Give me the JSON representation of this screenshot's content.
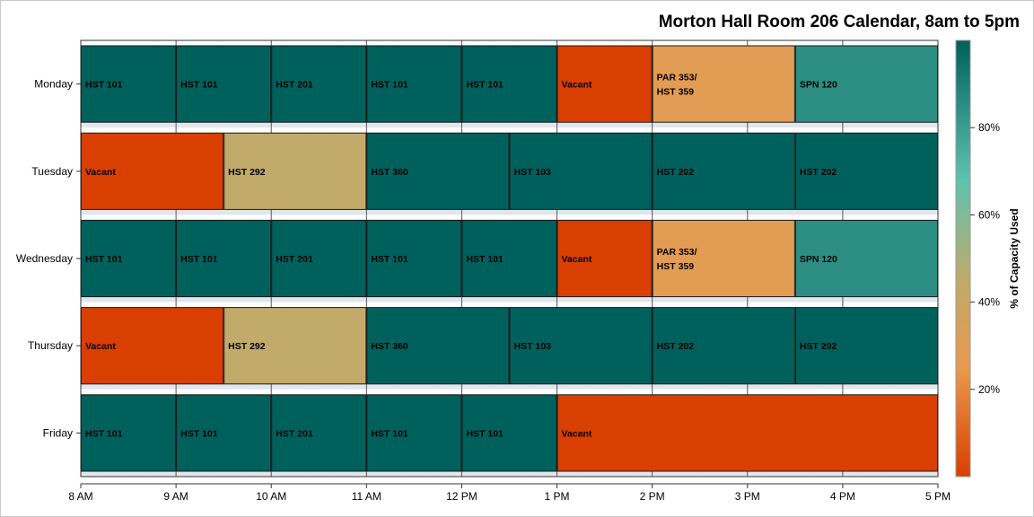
{
  "chart_data": {
    "type": "bar",
    "title": "Morton Hall Room 206 Calendar, 8am to 5pm",
    "days": [
      "Monday",
      "Tuesday",
      "Wednesday",
      "Thursday",
      "Friday"
    ],
    "x_ticks": [
      {
        "hour": 8,
        "label": "8 AM"
      },
      {
        "hour": 9,
        "label": "9 AM"
      },
      {
        "hour": 10,
        "label": "10 AM"
      },
      {
        "hour": 11,
        "label": "11 AM"
      },
      {
        "hour": 12,
        "label": "12 PM"
      },
      {
        "hour": 13,
        "label": "1 PM"
      },
      {
        "hour": 14,
        "label": "2 PM"
      },
      {
        "hour": 15,
        "label": "3 PM"
      },
      {
        "hour": 16,
        "label": "4 PM"
      },
      {
        "hour": 17,
        "label": "5 PM"
      }
    ],
    "xlim": [
      8,
      17
    ],
    "colorbar": {
      "label": "% of Capacity Used",
      "range": [
        0,
        100
      ],
      "ticks": [
        {
          "value": 20,
          "label": "20%"
        },
        {
          "value": 40,
          "label": "40%"
        },
        {
          "value": 60,
          "label": "60%"
        },
        {
          "value": 80,
          "label": "80%"
        }
      ],
      "stops": [
        {
          "value": 0,
          "color": "#d93f00"
        },
        {
          "value": 25,
          "color": "#e99a4f"
        },
        {
          "value": 45,
          "color": "#c1aa6a"
        },
        {
          "value": 68,
          "color": "#5ec2b0"
        },
        {
          "value": 100,
          "color": "#00605c"
        }
      ]
    },
    "events": [
      {
        "day": "Monday",
        "start": 8,
        "end": 9,
        "label": [
          "HST 101"
        ],
        "capacity": 100
      },
      {
        "day": "Monday",
        "start": 9,
        "end": 10,
        "label": [
          "HST 101"
        ],
        "capacity": 100
      },
      {
        "day": "Monday",
        "start": 10,
        "end": 11,
        "label": [
          "HST 201"
        ],
        "capacity": 100
      },
      {
        "day": "Monday",
        "start": 11,
        "end": 12,
        "label": [
          "HST 101"
        ],
        "capacity": 100
      },
      {
        "day": "Monday",
        "start": 12,
        "end": 13,
        "label": [
          "HST 101"
        ],
        "capacity": 100
      },
      {
        "day": "Monday",
        "start": 13,
        "end": 14,
        "label": [
          "Vacant"
        ],
        "capacity": 0
      },
      {
        "day": "Monday",
        "start": 14,
        "end": 15.5,
        "label": [
          "PAR 353/",
          "HST 359"
        ],
        "capacity": 28
      },
      {
        "day": "Monday",
        "start": 15.5,
        "end": 17,
        "label": [
          "SPN 120"
        ],
        "capacity": 85
      },
      {
        "day": "Tuesday",
        "start": 8,
        "end": 9.5,
        "label": [
          "Vacant"
        ],
        "capacity": 0
      },
      {
        "day": "Tuesday",
        "start": 9.5,
        "end": 11,
        "label": [
          "HST 292"
        ],
        "capacity": 45
      },
      {
        "day": "Tuesday",
        "start": 11,
        "end": 12.5,
        "label": [
          "HST 360"
        ],
        "capacity": 100
      },
      {
        "day": "Tuesday",
        "start": 12.5,
        "end": 14,
        "label": [
          "HST 103"
        ],
        "capacity": 100
      },
      {
        "day": "Tuesday",
        "start": 14,
        "end": 15.5,
        "label": [
          "HST 202"
        ],
        "capacity": 100
      },
      {
        "day": "Tuesday",
        "start": 15.5,
        "end": 17,
        "label": [
          "HST 202"
        ],
        "capacity": 100
      },
      {
        "day": "Wednesday",
        "start": 8,
        "end": 9,
        "label": [
          "HST 101"
        ],
        "capacity": 100
      },
      {
        "day": "Wednesday",
        "start": 9,
        "end": 10,
        "label": [
          "HST 101"
        ],
        "capacity": 100
      },
      {
        "day": "Wednesday",
        "start": 10,
        "end": 11,
        "label": [
          "HST 201"
        ],
        "capacity": 100
      },
      {
        "day": "Wednesday",
        "start": 11,
        "end": 12,
        "label": [
          "HST 101"
        ],
        "capacity": 100
      },
      {
        "day": "Wednesday",
        "start": 12,
        "end": 13,
        "label": [
          "HST 101"
        ],
        "capacity": 100
      },
      {
        "day": "Wednesday",
        "start": 13,
        "end": 14,
        "label": [
          "Vacant"
        ],
        "capacity": 0
      },
      {
        "day": "Wednesday",
        "start": 14,
        "end": 15.5,
        "label": [
          "PAR 353/",
          "HST 359"
        ],
        "capacity": 28
      },
      {
        "day": "Wednesday",
        "start": 15.5,
        "end": 17,
        "label": [
          "SPN 120"
        ],
        "capacity": 85
      },
      {
        "day": "Thursday",
        "start": 8,
        "end": 9.5,
        "label": [
          "Vacant"
        ],
        "capacity": 0
      },
      {
        "day": "Thursday",
        "start": 9.5,
        "end": 11,
        "label": [
          "HST 292"
        ],
        "capacity": 45
      },
      {
        "day": "Thursday",
        "start": 11,
        "end": 12.5,
        "label": [
          "HST 360"
        ],
        "capacity": 100
      },
      {
        "day": "Thursday",
        "start": 12.5,
        "end": 14,
        "label": [
          "HST 103"
        ],
        "capacity": 100
      },
      {
        "day": "Thursday",
        "start": 14,
        "end": 15.5,
        "label": [
          "HST 202"
        ],
        "capacity": 100
      },
      {
        "day": "Thursday",
        "start": 15.5,
        "end": 17,
        "label": [
          "HST 202"
        ],
        "capacity": 100
      },
      {
        "day": "Friday",
        "start": 8,
        "end": 9,
        "label": [
          "HST 101"
        ],
        "capacity": 100
      },
      {
        "day": "Friday",
        "start": 9,
        "end": 10,
        "label": [
          "HST 101"
        ],
        "capacity": 100
      },
      {
        "day": "Friday",
        "start": 10,
        "end": 11,
        "label": [
          "HST 201"
        ],
        "capacity": 100
      },
      {
        "day": "Friday",
        "start": 11,
        "end": 12,
        "label": [
          "HST 101"
        ],
        "capacity": 100
      },
      {
        "day": "Friday",
        "start": 12,
        "end": 13,
        "label": [
          "HST 101"
        ],
        "capacity": 100
      },
      {
        "day": "Friday",
        "start": 13,
        "end": 17,
        "label": [
          "Vacant"
        ],
        "capacity": 0
      }
    ]
  }
}
